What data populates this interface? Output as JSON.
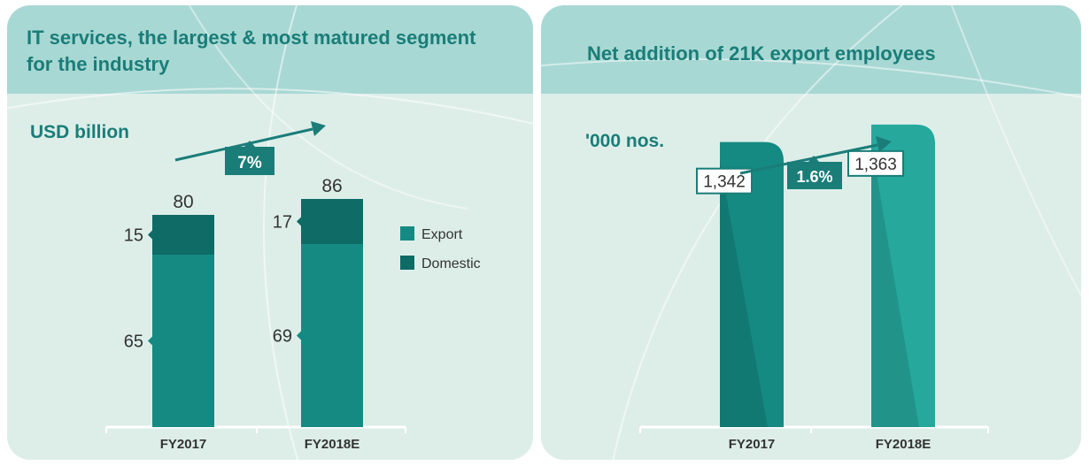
{
  "chart_data": [
    {
      "type": "bar",
      "stacked": true,
      "title": "IT services, the largest & most matured segment for the industry",
      "unit": "USD billion",
      "categories": [
        "FY2017",
        "FY2018E"
      ],
      "series": [
        {
          "name": "Export",
          "values": [
            65,
            69
          ],
          "color": "#158a82"
        },
        {
          "name": "Domestic",
          "values": [
            15,
            17
          ],
          "color": "#0e6b66"
        }
      ],
      "totals": [
        80,
        86
      ],
      "growth_label": "7%",
      "legend": "right"
    },
    {
      "type": "bar",
      "title": "Net addition of 21K export employees",
      "unit": "'000 nos.",
      "categories": [
        "FY2017",
        "FY2018E"
      ],
      "values": [
        1342,
        1363
      ],
      "value_labels": [
        "1,342",
        "1,363"
      ],
      "colors": [
        "#158a82",
        "#26a89d"
      ],
      "growth_label": "1.6%"
    }
  ]
}
